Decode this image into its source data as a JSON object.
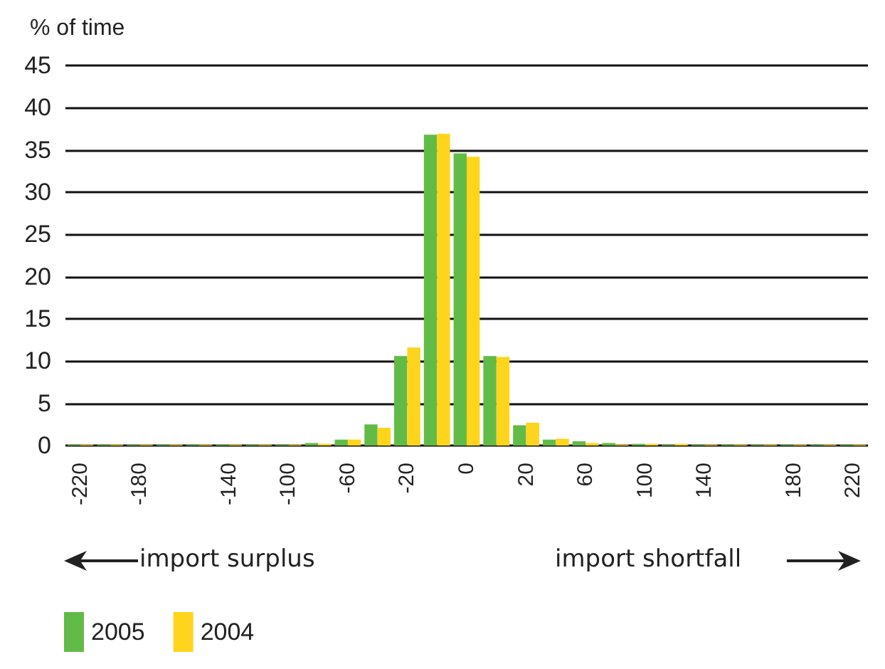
{
  "chart_data": {
    "type": "bar",
    "ylabel": "% of time",
    "categories": [
      "-220",
      null,
      "-180",
      null,
      null,
      "-140",
      null,
      "-100",
      null,
      "-60",
      null,
      "-20",
      null,
      "0",
      null,
      "20",
      null,
      "60",
      null,
      "100",
      null,
      "140",
      null,
      null,
      "180",
      null,
      "220"
    ],
    "series": [
      {
        "name": "2005",
        "color": "#62bb46",
        "values": [
          0.1,
          0.1,
          0.1,
          0.1,
          0.1,
          0.1,
          0.1,
          0.1,
          0.3,
          0.7,
          2.5,
          10.6,
          36.8,
          34.6,
          10.6,
          2.4,
          0.7,
          0.5,
          0.3,
          0.2,
          0.1,
          0.1,
          0.1,
          0.1,
          0.1,
          0.1,
          0.1
        ]
      },
      {
        "name": "2004",
        "color": "#fed51c",
        "values": [
          0.1,
          0.1,
          0.1,
          0.1,
          0.1,
          0.1,
          0.1,
          0.1,
          0.2,
          0.7,
          2.1,
          11.6,
          36.9,
          34.2,
          10.5,
          2.7,
          0.8,
          0.3,
          0.1,
          0.2,
          0.2,
          0.1,
          0.1,
          0.1,
          0.1,
          0.1,
          0.1
        ]
      }
    ],
    "ylim": [
      0,
      45
    ],
    "yticks": [
      0,
      5,
      10,
      15,
      20,
      25,
      30,
      35,
      40,
      45
    ],
    "grid": "y",
    "legend": "bottom left",
    "annotations": [
      "import surplus",
      "import shortfall"
    ]
  }
}
